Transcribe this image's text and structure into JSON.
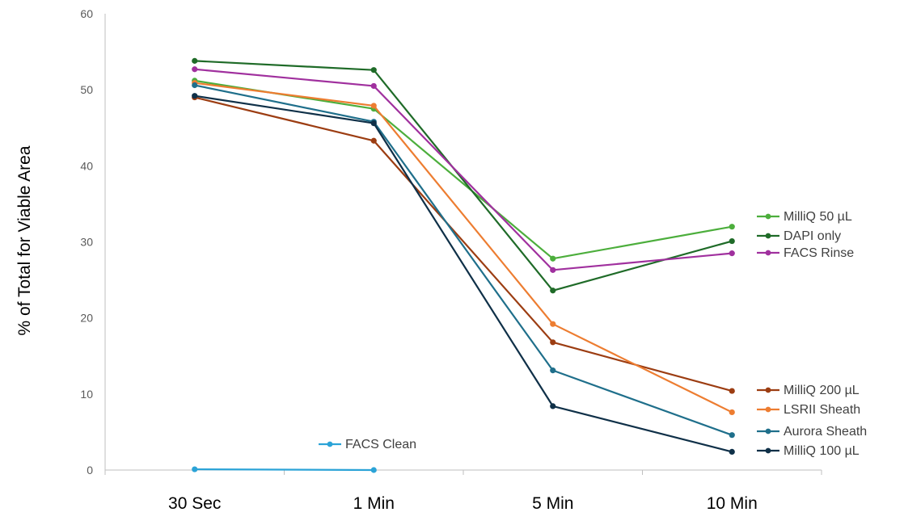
{
  "chart_data": {
    "type": "line",
    "ylabel": "% of Total for Viable Area",
    "xlabel": "",
    "title": "",
    "ylim": [
      0,
      60
    ],
    "yticks": [
      0,
      10,
      20,
      30,
      40,
      50,
      60
    ],
    "categories": [
      "30 Sec",
      "1 Min",
      "5 Min",
      "10 Min"
    ],
    "grid": false,
    "legend_placement": "inline-right",
    "series": [
      {
        "name": "MilliQ 50 µL",
        "color": "#4cae3c",
        "values": [
          51.2,
          47.5,
          27.8,
          32.0
        ]
      },
      {
        "name": "DAPI only",
        "color": "#1f6b28",
        "values": [
          53.8,
          52.6,
          23.6,
          30.1
        ]
      },
      {
        "name": "FACS Rinse",
        "color": "#a0309e",
        "values": [
          52.7,
          50.5,
          26.3,
          28.5
        ]
      },
      {
        "name": "MilliQ 200 µL",
        "color": "#9c3d12",
        "values": [
          49.0,
          43.3,
          16.8,
          10.4
        ]
      },
      {
        "name": "LSRII Sheath",
        "color": "#ed7d31",
        "values": [
          50.9,
          47.9,
          19.2,
          7.6
        ]
      },
      {
        "name": "Aurora Sheath",
        "color": "#1f6f8b",
        "values": [
          50.6,
          45.8,
          13.1,
          4.6
        ]
      },
      {
        "name": "MilliQ 100 µL",
        "color": "#0f3048",
        "values": [
          49.2,
          45.6,
          8.4,
          2.4
        ]
      },
      {
        "name": "FACS Clean",
        "color": "#2ba3d7",
        "values": [
          0.1,
          0.0,
          null,
          null
        ]
      }
    ]
  }
}
